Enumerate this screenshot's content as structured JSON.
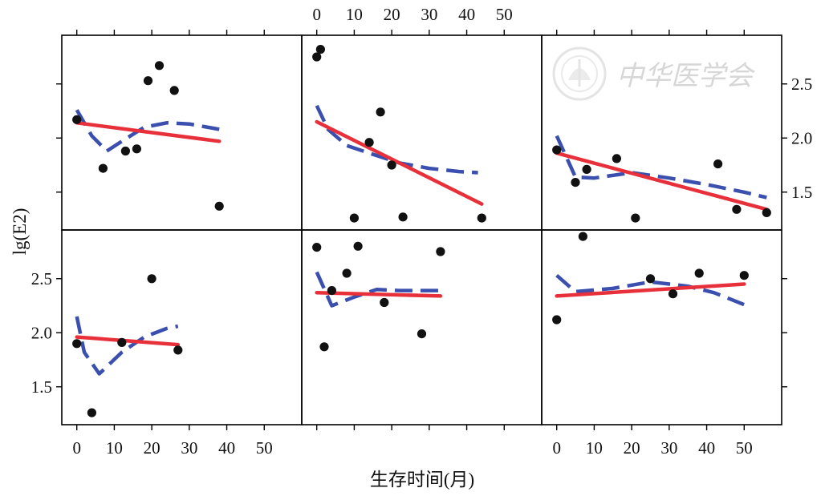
{
  "chart_data": {
    "type": "scatter",
    "layout": "lattice 2 rows x 3 columns",
    "xlabel": "生存时间(月)",
    "ylabel": "lg(E2)",
    "xlim": [
      -4,
      60
    ],
    "ylim": [
      1.15,
      2.95
    ],
    "x_ticks": [
      0,
      10,
      20,
      30,
      40,
      50
    ],
    "y_ticks": [
      1.5,
      2.0,
      2.5
    ],
    "colors": {
      "points": "#111111",
      "linear_fit": "#e8303a",
      "smooth": "#3a4fae"
    },
    "watermark": "中华医学会",
    "panels": [
      {
        "points": [
          [
            0,
            2.17
          ],
          [
            7,
            1.72
          ],
          [
            13,
            1.88
          ],
          [
            16,
            1.9
          ],
          [
            19,
            2.53
          ],
          [
            22,
            2.67
          ],
          [
            26,
            2.44
          ],
          [
            38,
            1.37
          ]
        ],
        "linear_fit": [
          [
            0,
            2.14
          ],
          [
            38,
            1.97
          ]
        ],
        "smooth": [
          [
            0,
            2.26
          ],
          [
            4,
            2.02
          ],
          [
            8,
            1.88
          ],
          [
            12,
            1.97
          ],
          [
            18,
            2.1
          ],
          [
            24,
            2.14
          ],
          [
            30,
            2.13
          ],
          [
            38,
            2.08
          ]
        ]
      },
      {
        "points": [
          [
            0,
            2.75
          ],
          [
            1,
            2.82
          ],
          [
            10,
            1.26
          ],
          [
            14,
            1.96
          ],
          [
            17,
            2.24
          ],
          [
            20,
            1.75
          ],
          [
            23,
            1.27
          ],
          [
            44,
            1.26
          ]
        ],
        "linear_fit": [
          [
            0,
            2.15
          ],
          [
            44,
            1.39
          ]
        ],
        "smooth": [
          [
            0,
            2.3
          ],
          [
            3,
            2.08
          ],
          [
            8,
            1.93
          ],
          [
            14,
            1.86
          ],
          [
            22,
            1.77
          ],
          [
            30,
            1.72
          ],
          [
            38,
            1.69
          ],
          [
            43,
            1.68
          ]
        ]
      },
      {
        "points": [
          [
            0,
            1.89
          ],
          [
            5,
            1.59
          ],
          [
            8,
            1.71
          ],
          [
            16,
            1.81
          ],
          [
            21,
            1.26
          ],
          [
            43,
            1.76
          ],
          [
            48,
            1.34
          ],
          [
            56,
            1.31
          ]
        ],
        "linear_fit": [
          [
            0,
            1.86
          ],
          [
            56,
            1.34
          ]
        ],
        "smooth": [
          [
            0,
            2.02
          ],
          [
            5,
            1.64
          ],
          [
            10,
            1.63
          ],
          [
            20,
            1.68
          ],
          [
            30,
            1.63
          ],
          [
            40,
            1.57
          ],
          [
            50,
            1.5
          ],
          [
            56,
            1.45
          ]
        ]
      },
      {
        "points": [
          [
            0,
            1.9
          ],
          [
            4,
            1.26
          ],
          [
            12,
            1.91
          ],
          [
            20,
            2.5
          ],
          [
            27,
            1.84
          ]
        ],
        "linear_fit": [
          [
            0,
            1.96
          ],
          [
            27,
            1.89
          ]
        ],
        "smooth": [
          [
            0,
            2.15
          ],
          [
            2,
            1.82
          ],
          [
            6,
            1.62
          ],
          [
            12,
            1.82
          ],
          [
            18,
            1.96
          ],
          [
            24,
            2.04
          ],
          [
            27,
            2.06
          ]
        ]
      },
      {
        "points": [
          [
            0,
            2.79
          ],
          [
            2,
            1.87
          ],
          [
            4,
            2.39
          ],
          [
            8,
            2.55
          ],
          [
            11,
            2.8
          ],
          [
            18,
            2.28
          ],
          [
            28,
            1.99
          ],
          [
            33,
            2.75
          ]
        ],
        "linear_fit": [
          [
            0,
            2.37
          ],
          [
            33,
            2.34
          ]
        ],
        "smooth": [
          [
            0,
            2.56
          ],
          [
            4,
            2.25
          ],
          [
            10,
            2.33
          ],
          [
            16,
            2.4
          ],
          [
            22,
            2.39
          ],
          [
            28,
            2.39
          ],
          [
            33,
            2.39
          ]
        ]
      },
      {
        "points": [
          [
            0,
            2.12
          ],
          [
            7,
            2.89
          ],
          [
            25,
            2.5
          ],
          [
            31,
            2.36
          ],
          [
            38,
            2.55
          ],
          [
            50,
            2.53
          ]
        ],
        "linear_fit": [
          [
            0,
            2.34
          ],
          [
            50,
            2.45
          ]
        ],
        "smooth": [
          [
            0,
            2.53
          ],
          [
            5,
            2.38
          ],
          [
            15,
            2.41
          ],
          [
            25,
            2.47
          ],
          [
            35,
            2.43
          ],
          [
            42,
            2.37
          ],
          [
            50,
            2.26
          ]
        ]
      }
    ]
  }
}
